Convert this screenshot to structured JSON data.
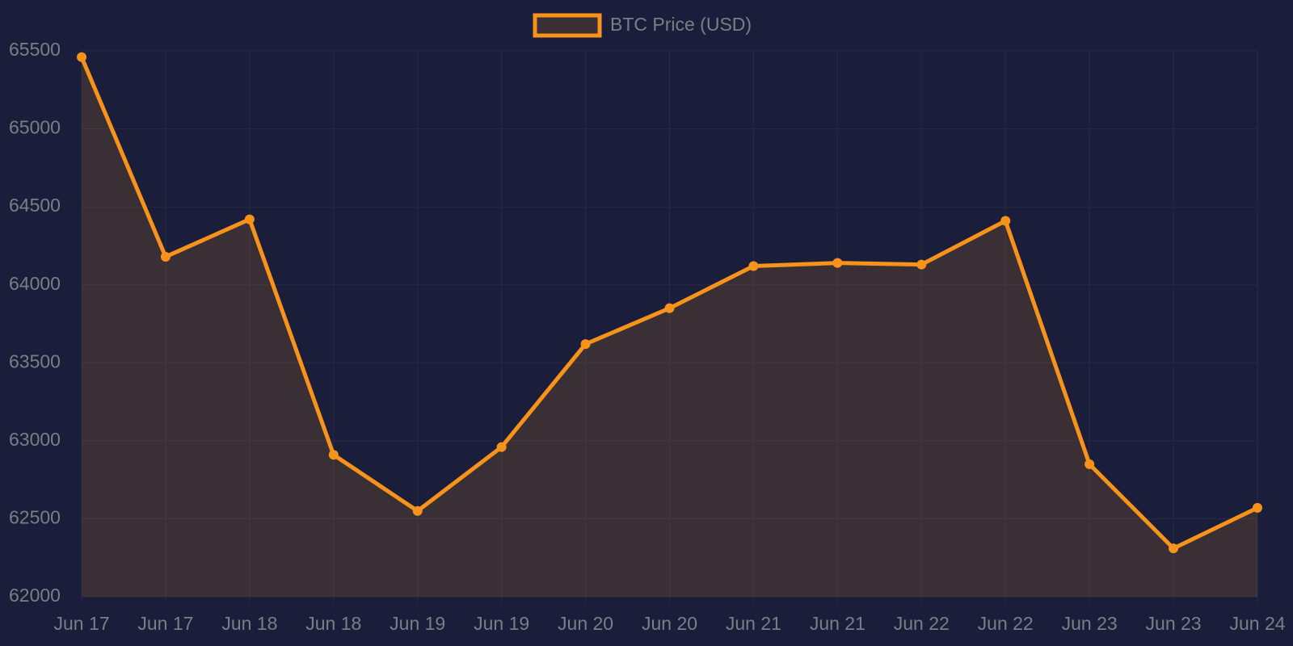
{
  "chart_data": {
    "type": "line",
    "categories": [
      "Jun 17",
      "Jun 17",
      "Jun 18",
      "Jun 18",
      "Jun 19",
      "Jun 19",
      "Jun 20",
      "Jun 20",
      "Jun 21",
      "Jun 21",
      "Jun 22",
      "Jun 22",
      "Jun 23",
      "Jun 23",
      "Jun 24"
    ],
    "series": [
      {
        "name": "BTC Price (USD)",
        "color": "#f7931a",
        "values": [
          65460,
          64180,
          64420,
          62910,
          62550,
          62960,
          63620,
          63850,
          64120,
          64140,
          64130,
          64410,
          62850,
          62310,
          62570
        ]
      }
    ],
    "fill": true,
    "ylim": [
      62000,
      65500
    ],
    "yticks": [
      62000,
      62500,
      63000,
      63500,
      64000,
      64500,
      65000,
      65500
    ],
    "grid": true,
    "legend": "top"
  }
}
